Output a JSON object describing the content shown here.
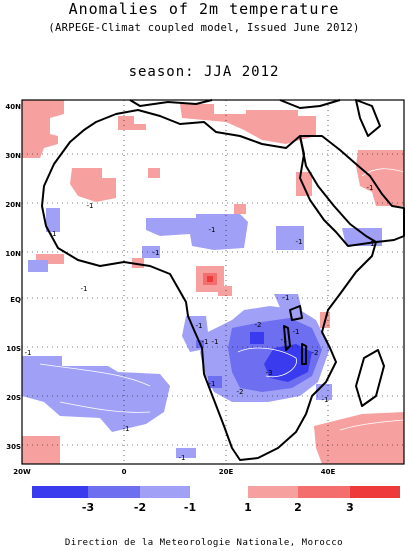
{
  "header": {
    "title": "Anomalies of 2m temperature",
    "subtitle": "(ARPEGE-Climat coupled model, Issued June 2012)",
    "season": "season: JJA 2012"
  },
  "map": {
    "lat_labels": [
      "40N",
      "30N",
      "20N",
      "10N",
      "EQ",
      "10S",
      "20S",
      "30S"
    ],
    "lon_labels": [
      "20W",
      "0",
      "20E",
      "40E"
    ],
    "contour_labels": [
      {
        "id": "c1",
        "text": "-1"
      },
      {
        "id": "c2",
        "text": "-1"
      },
      {
        "id": "c3",
        "text": "-1"
      },
      {
        "id": "c4",
        "text": "-1"
      },
      {
        "id": "c5",
        "text": "-1"
      },
      {
        "id": "c6",
        "text": "-1"
      },
      {
        "id": "c7",
        "text": "-1"
      },
      {
        "id": "c8",
        "text": "-1"
      },
      {
        "id": "c9",
        "text": "-1"
      },
      {
        "id": "c10",
        "text": "-1"
      },
      {
        "id": "c11",
        "text": "-1"
      },
      {
        "id": "c12",
        "text": "-2"
      },
      {
        "id": "c13",
        "text": "-1"
      },
      {
        "id": "c14",
        "text": "-1"
      },
      {
        "id": "c15",
        "text": "-2"
      },
      {
        "id": "c16",
        "text": "-3"
      },
      {
        "id": "c17",
        "text": "-2"
      },
      {
        "id": "c18",
        "text": "-1"
      },
      {
        "id": "c19",
        "text": "-1"
      },
      {
        "id": "c20",
        "text": "-1"
      },
      {
        "id": "c21",
        "text": "-1"
      },
      {
        "id": "c22",
        "text": "-1"
      },
      {
        "id": "c23",
        "text": "-1"
      }
    ],
    "colors": {
      "warm_light": "#f7a0a0",
      "warm_mid": "#f56e6e",
      "warm_strong": "#ee3a3a",
      "cool_light": "#a0a0f7",
      "cool_mid": "#6e6ef0",
      "cool_strong": "#3a3aee",
      "coast": "#000000"
    }
  },
  "colorbar": {
    "labels": [
      "-3",
      "-2",
      "-1",
      "1",
      "2",
      "3"
    ],
    "colors": [
      "#3a3aee",
      "#6e6ef0",
      "#a0a0f7",
      "#f7a0a0",
      "#f56e6e",
      "#ee3a3a"
    ]
  },
  "footer": "Direction de la Meteorologie Nationale, Morocco"
}
